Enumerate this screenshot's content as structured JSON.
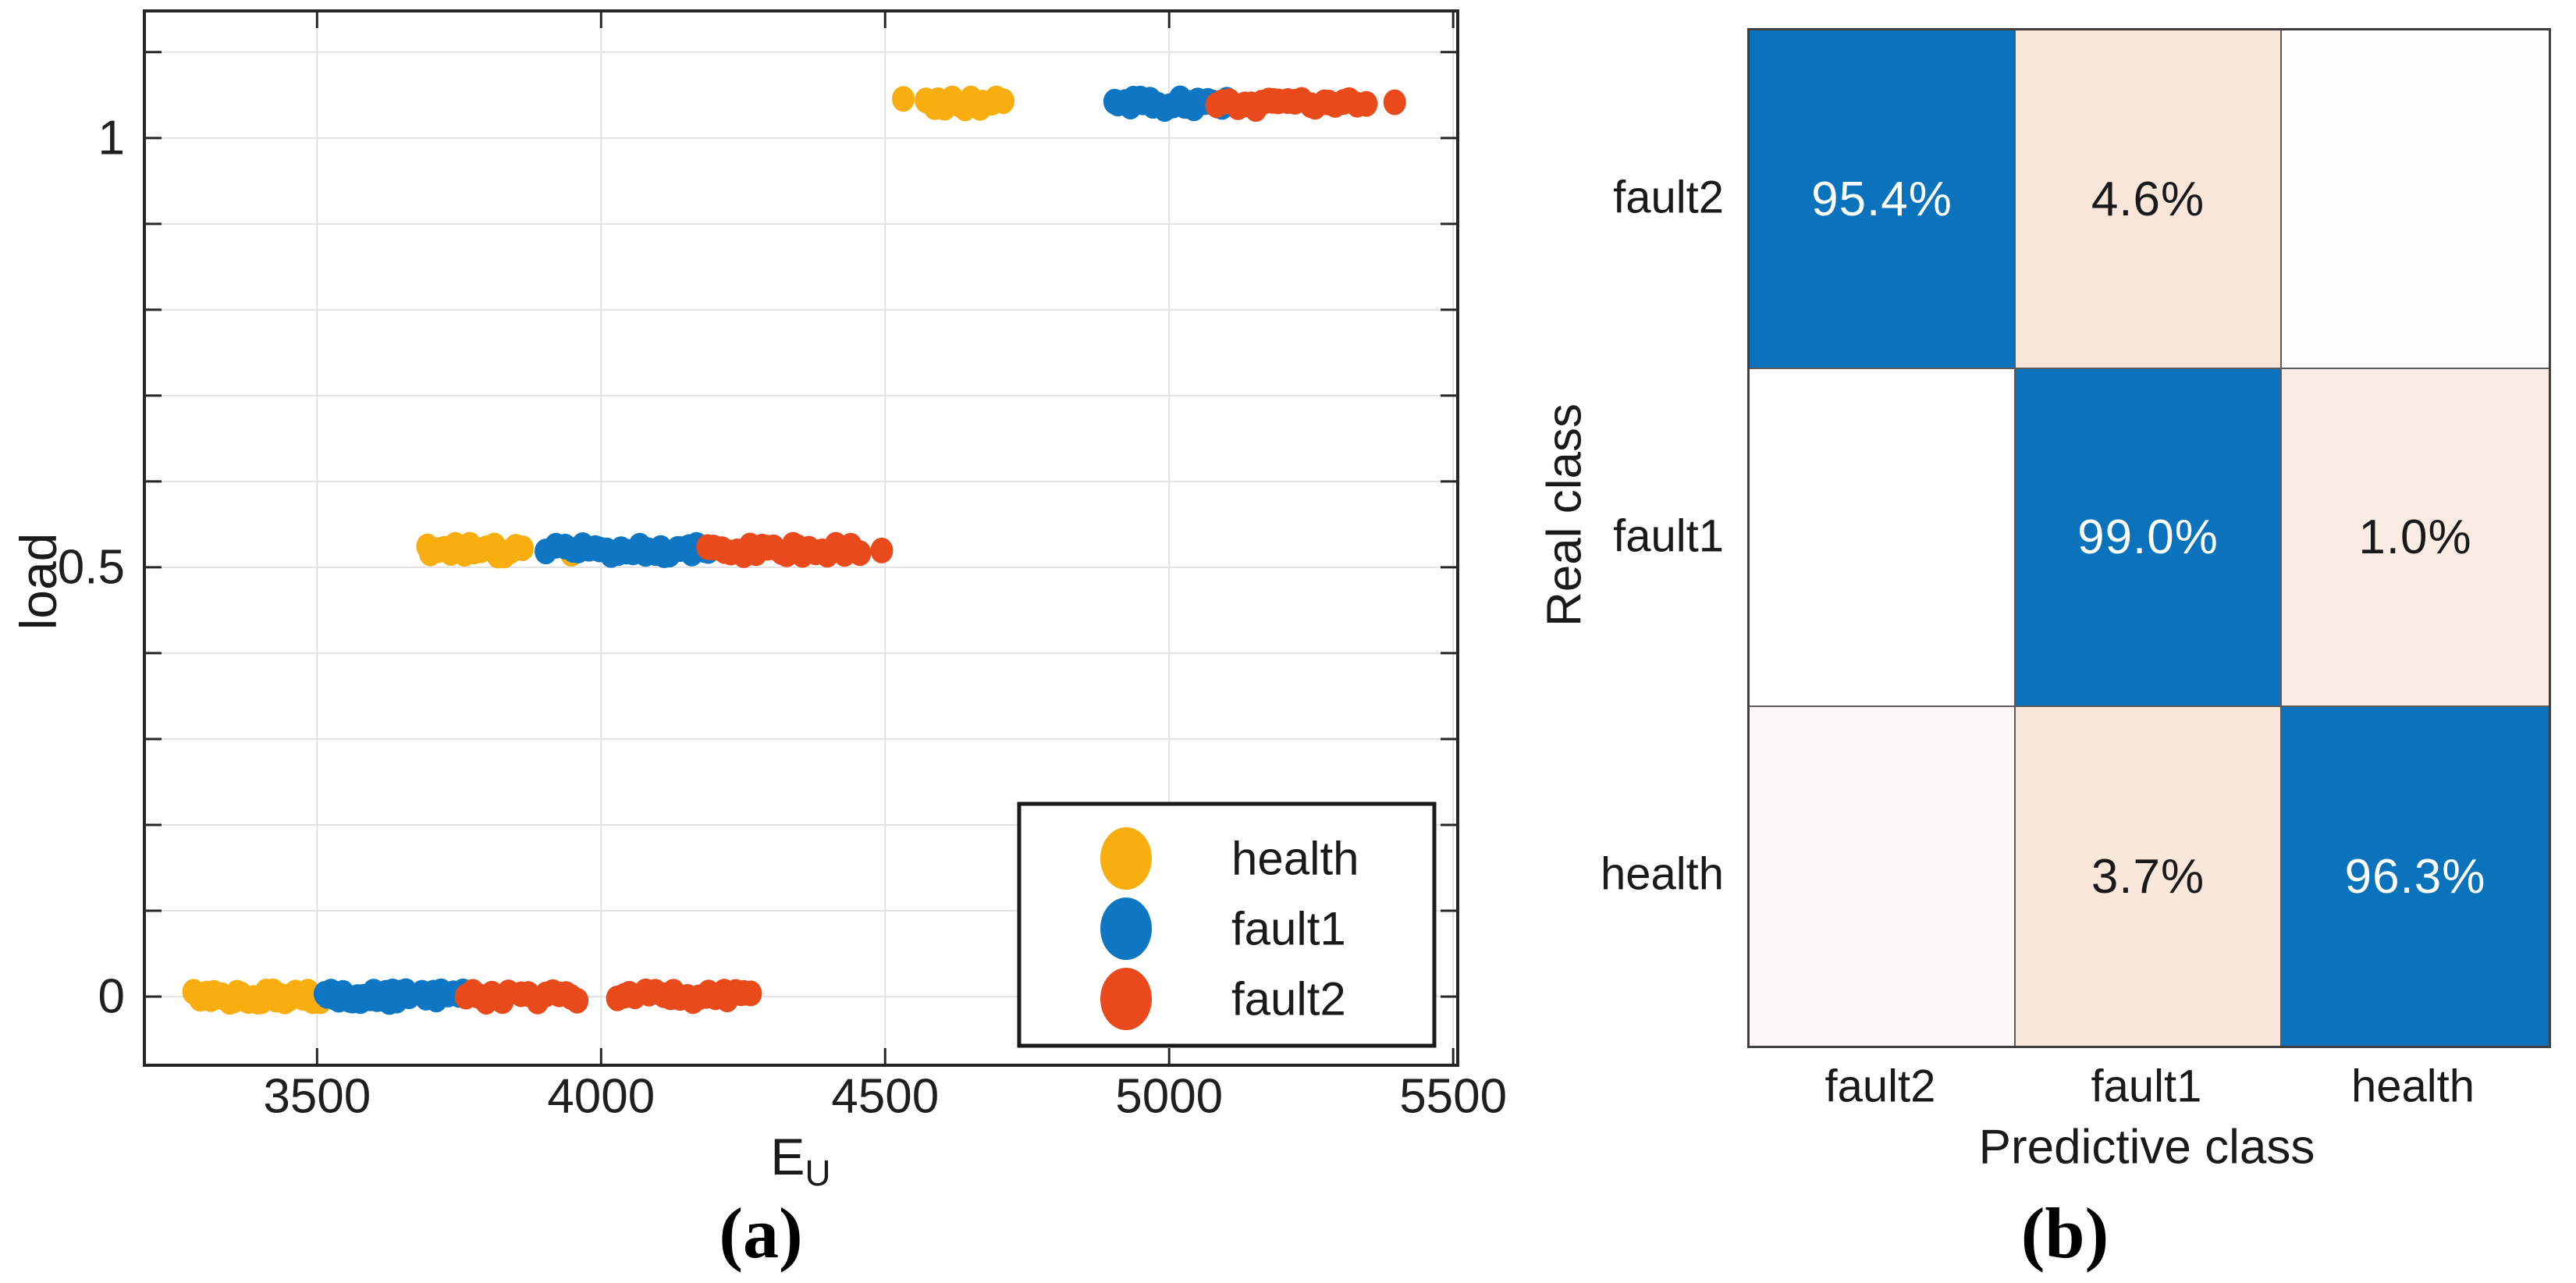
{
  "figure": {
    "caption_a": "(a)",
    "caption_b": "(b)"
  },
  "chart_data": [
    {
      "id": "load_vs_eu_scatter",
      "type": "scatter",
      "title": "",
      "xlabel_main": "E",
      "xlabel_sub": "U",
      "ylabel": "load",
      "xlim": [
        3196,
        5508
      ],
      "ylim": [
        -0.08,
        1.148
      ],
      "xticks": [
        3500,
        4000,
        4500,
        5000,
        5500
      ],
      "ytick_labels": [
        {
          "v": 0,
          "label": "0"
        },
        {
          "v": 0.5,
          "label": "0.5"
        },
        {
          "v": 1,
          "label": "1"
        }
      ],
      "ygrid": {
        "min": 0,
        "max": 1.1,
        "step": 0.1
      },
      "grid": true,
      "legend_position": "southeast",
      "load_levels": [
        0,
        0.52,
        1.04
      ],
      "series": [
        {
          "name": "health",
          "color": "#F9AE10",
          "clusters": [
            {
              "load": 0,
              "x0": 3285,
              "x1": 3512,
              "n": 34
            },
            {
              "load": 0.52,
              "x0": 3692,
              "x1": 3862,
              "n": 17
            },
            {
              "load": 0.52,
              "x0": 3948,
              "x1": 3948,
              "n": 1
            },
            {
              "load": 1.04,
              "x0": 4532,
              "x1": 4532,
              "n": 1
            },
            {
              "load": 1.04,
              "x0": 4573,
              "x1": 4710,
              "n": 13
            }
          ]
        },
        {
          "name": "fault1",
          "color": "#0F76C4",
          "clusters": [
            {
              "load": 0,
              "x0": 3512,
              "x1": 3662,
              "n": 22
            },
            {
              "load": 0,
              "x0": 3686,
              "x1": 3756,
              "n": 9
            },
            {
              "load": 0.52,
              "x0": 3908,
              "x1": 3938,
              "n": 3
            },
            {
              "load": 0.52,
              "x0": 3952,
              "x1": 4190,
              "n": 26
            },
            {
              "load": 1.04,
              "x0": 4904,
              "x1": 5103,
              "n": 24
            }
          ]
        },
        {
          "name": "fault2",
          "color": "#E94A1B",
          "clusters": [
            {
              "load": 0,
              "x0": 3765,
              "x1": 3835,
              "n": 8
            },
            {
              "load": 0,
              "x0": 3862,
              "x1": 3962,
              "n": 9
            },
            {
              "load": 0,
              "x0": 4028,
              "x1": 4122,
              "n": 9
            },
            {
              "load": 0,
              "x0": 4130,
              "x1": 4265,
              "n": 14
            },
            {
              "load": 0.52,
              "x0": 4188,
              "x1": 4452,
              "n": 26
            },
            {
              "load": 0.52,
              "x0": 4494,
              "x1": 4494,
              "n": 1
            },
            {
              "load": 1.04,
              "x0": 5085,
              "x1": 5186,
              "n": 10
            },
            {
              "load": 1.04,
              "x0": 5196,
              "x1": 5344,
              "n": 13
            },
            {
              "load": 1.04,
              "x0": 5397,
              "x1": 5397,
              "n": 1
            }
          ]
        }
      ],
      "colors": {
        "grid": "#E2E2E2",
        "axis": "#262626",
        "tick_label": "#1F1F1F",
        "legend_border": "#1A1A1A"
      }
    },
    {
      "id": "confusion_matrix",
      "type": "heatmap",
      "xlabel": "Predictive class",
      "ylabel": "Real class",
      "row_labels": [
        "fault2",
        "fault1",
        "health"
      ],
      "col_labels": [
        "fault2",
        "fault1",
        "health"
      ],
      "values": [
        [
          95.4,
          4.6,
          null
        ],
        [
          null,
          99.0,
          1.0
        ],
        [
          null,
          3.7,
          96.3
        ]
      ],
      "cells": [
        [
          {
            "label": "95.4%",
            "bg": "#0B73BC",
            "fg": "#FFFFFF"
          },
          {
            "label": "4.6%",
            "bg": "#F9E6DB",
            "fg": "#1A1A1A"
          },
          {
            "label": "",
            "bg": "#FDFDFE",
            "fg": "#1A1A1A"
          }
        ],
        [
          {
            "label": "",
            "bg": "#FFFFFF",
            "fg": "#1A1A1A"
          },
          {
            "label": "99.0%",
            "bg": "#0B73BC",
            "fg": "#FFFFFF"
          },
          {
            "label": "1.0%",
            "bg": "#FBEDE5",
            "fg": "#1A1A1A"
          }
        ],
        [
          {
            "label": "",
            "bg": "#FBF8F7",
            "fg": "#1A1A1A"
          },
          {
            "label": "3.7%",
            "bg": "#F9E7DC",
            "fg": "#1A1A1A"
          },
          {
            "label": "96.3%",
            "bg": "#0B73BC",
            "fg": "#FFFFFF"
          }
        ]
      ]
    }
  ]
}
